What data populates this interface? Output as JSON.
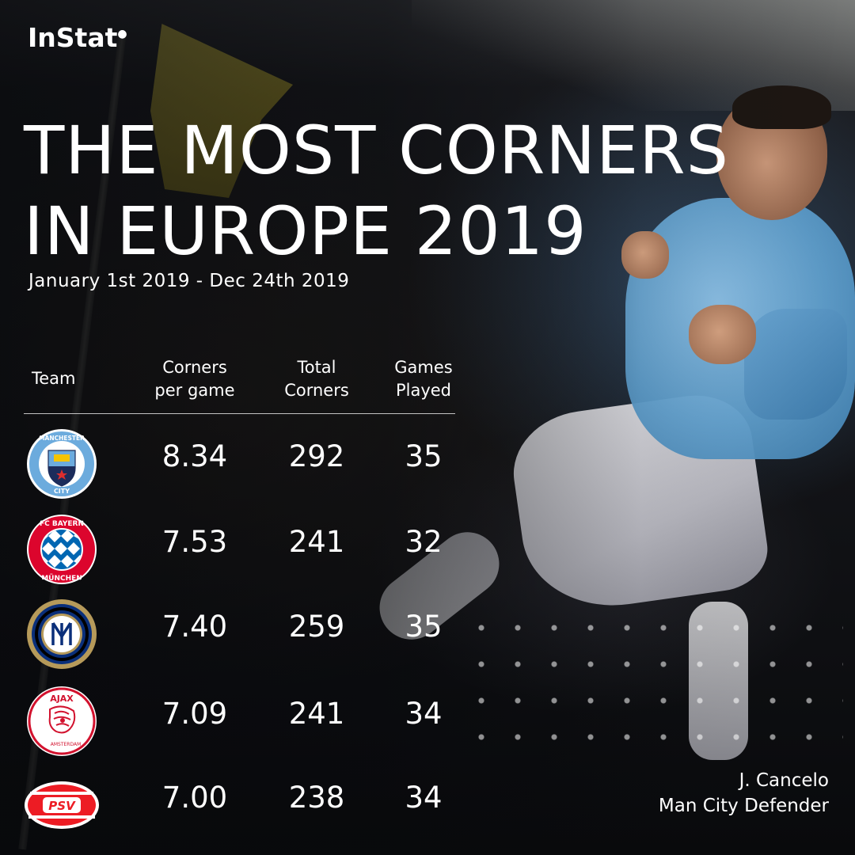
{
  "brand": {
    "logo_text": "InStat"
  },
  "header": {
    "title_line_1": "THE MOST CORNERS",
    "title_line_2": "IN EUROPE 2019",
    "subtitle": "January 1st 2019 - Dec 24th 2019"
  },
  "table": {
    "columns": {
      "team": "Team",
      "corners_per_game_1": "Corners",
      "corners_per_game_2": "per game",
      "total_corners_1": "Total",
      "total_corners_2": "Corners",
      "games_played_1": "Games",
      "games_played_2": "Played"
    },
    "rows": [
      {
        "team_icon": "manchester-city-badge",
        "corners_per_game": "8.34",
        "total_corners": "292",
        "games_played": "35"
      },
      {
        "team_icon": "bayern-munchen-badge",
        "corners_per_game": "7.53",
        "total_corners": "241",
        "games_played": "32"
      },
      {
        "team_icon": "inter-milan-badge",
        "corners_per_game": "7.40",
        "total_corners": "259",
        "games_played": "35"
      },
      {
        "team_icon": "ajax-badge",
        "corners_per_game": "7.09",
        "total_corners": "241",
        "games_played": "34"
      },
      {
        "team_icon": "psv-badge",
        "corners_per_game": "7.00",
        "total_corners": "238",
        "games_played": "34"
      }
    ]
  },
  "badge_text": {
    "manchester": "MANCHESTER",
    "city": "CITY",
    "fc_bayern": "FC BAYERN",
    "munchen": "MÜNCHEN",
    "ajax": "AJAX",
    "amsterdam": "AMSTERDAM",
    "psv": "PSV"
  },
  "caption": {
    "player_name": "J. Cancelo",
    "player_role": "Man City Defender"
  },
  "colors": {
    "man_city_blue": "#6cabdd",
    "bayern_red": "#dc052d",
    "bayern_blue": "#0066b2",
    "inter_blue": "#0a2f7a",
    "inter_gold": "#b69a5a",
    "ajax_red": "#d2122e",
    "psv_red": "#ed1c24"
  }
}
